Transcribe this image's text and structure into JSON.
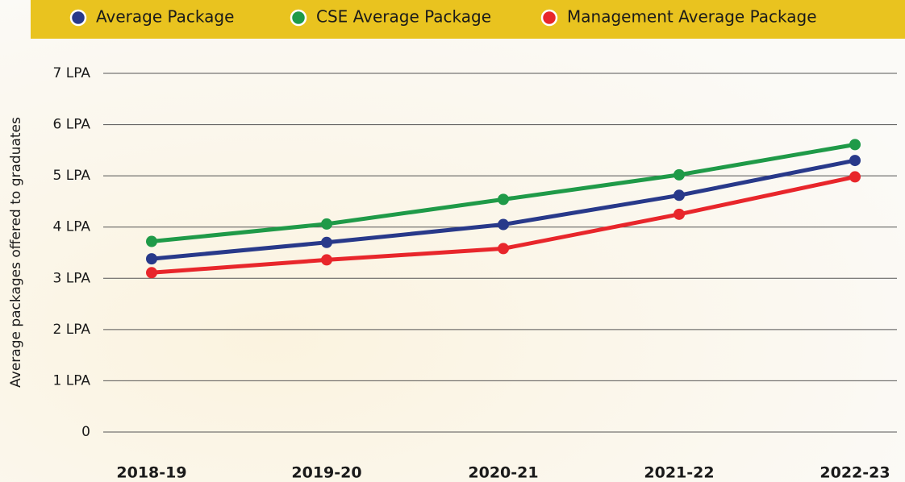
{
  "chart_data": {
    "type": "line",
    "y_label": "Average packages offered to graduates",
    "categories": [
      "2018-19",
      "2019-20",
      "2020-21",
      "2021-22",
      "2022-23"
    ],
    "series": [
      {
        "name": "Average Package",
        "color": "#28398a",
        "values": [
          3.38,
          3.7,
          4.05,
          4.62,
          5.3
        ]
      },
      {
        "name": "CSE Average Package",
        "color": "#1f9a48",
        "values": [
          3.72,
          4.06,
          4.54,
          5.02,
          5.61
        ]
      },
      {
        "name": "Management Average Package",
        "color": "#e8262b",
        "values": [
          3.11,
          3.36,
          3.58,
          4.25,
          4.98
        ]
      }
    ],
    "ylim": [
      0,
      7
    ],
    "yticks": [
      0,
      {
        "value": 1,
        "label": "1 LPA"
      },
      {
        "value": 2,
        "label": "2 LPA"
      },
      {
        "value": 3,
        "label": "3 LPA"
      },
      {
        "value": 4,
        "label": "4 LPA"
      },
      {
        "value": 5,
        "label": "5 LPA"
      },
      {
        "value": 6,
        "label": "6 LPA"
      },
      {
        "value": 7,
        "label": "7 LPA"
      }
    ],
    "grid": true,
    "legend_position": "top"
  }
}
